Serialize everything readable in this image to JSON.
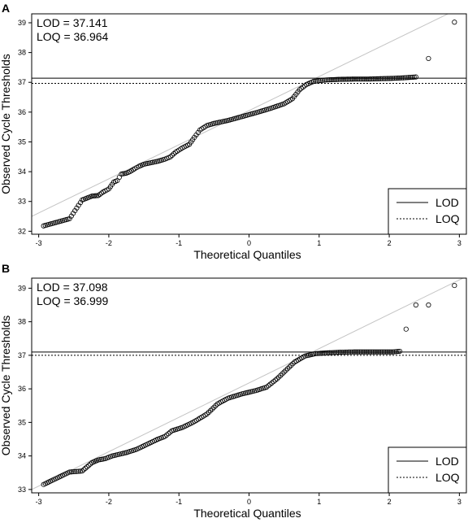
{
  "chart_data": [
    {
      "type": "scatter",
      "panel_label": "A",
      "xlabel": "Theoretical Quantiles",
      "ylabel": "Observed Cycle Thresholds",
      "xlim": [
        -3.1,
        3.1
      ],
      "ylim": [
        31.9,
        39.3
      ],
      "xticks": [
        -3,
        -2,
        -1,
        0,
        1,
        2,
        3
      ],
      "yticks": [
        32,
        33,
        34,
        35,
        36,
        37,
        38,
        39
      ],
      "annotations": [
        "LOD = 37.141",
        "LOQ = 36.964"
      ],
      "hlines": [
        {
          "name": "LOD",
          "y": 37.141,
          "style": "solid"
        },
        {
          "name": "LOQ",
          "y": 36.964,
          "style": "dotted"
        }
      ],
      "reference_line": {
        "x": [
          -3.1,
          3.1
        ],
        "y": [
          32.5,
          39.6
        ]
      },
      "legend": {
        "position": "bottom-right",
        "entries": [
          {
            "label": "LOD",
            "style": "solid"
          },
          {
            "label": "LOQ",
            "style": "dotted"
          }
        ]
      },
      "series": [
        {
          "curve": [
            [
              -2.93,
              32.18
            ],
            [
              -2.56,
              32.42
            ],
            [
              -2.38,
              33.05
            ],
            [
              -2.24,
              33.18
            ],
            [
              -2.15,
              33.2
            ],
            [
              -2.08,
              33.32
            ],
            [
              -2.0,
              33.42
            ],
            [
              -1.93,
              33.65
            ],
            [
              -1.88,
              33.7
            ],
            [
              -1.82,
              33.92
            ],
            [
              -1.75,
              33.95
            ],
            [
              -1.7,
              34.0
            ],
            [
              -1.63,
              34.1
            ],
            [
              -1.57,
              34.18
            ],
            [
              -1.5,
              34.25
            ],
            [
              -1.4,
              34.3
            ],
            [
              -1.3,
              34.35
            ],
            [
              -1.2,
              34.42
            ],
            [
              -1.12,
              34.5
            ],
            [
              -1.05,
              34.65
            ],
            [
              -0.95,
              34.8
            ],
            [
              -0.85,
              34.92
            ],
            [
              -0.78,
              35.15
            ],
            [
              -0.7,
              35.4
            ],
            [
              -0.6,
              35.55
            ],
            [
              -0.5,
              35.62
            ],
            [
              -0.3,
              35.72
            ],
            [
              -0.1,
              35.85
            ],
            [
              0.1,
              35.98
            ],
            [
              0.3,
              36.12
            ],
            [
              0.5,
              36.28
            ],
            [
              0.62,
              36.45
            ],
            [
              0.72,
              36.75
            ],
            [
              0.82,
              36.93
            ],
            [
              0.92,
              37.03
            ],
            [
              1.1,
              37.08
            ],
            [
              1.3,
              37.1
            ],
            [
              1.5,
              37.11
            ],
            [
              1.7,
              37.11
            ],
            [
              1.85,
              37.12
            ],
            [
              2.0,
              37.13
            ],
            [
              2.1,
              37.14
            ],
            [
              2.2,
              37.15
            ],
            [
              2.38,
              37.18
            ]
          ]
        },
        {
          "points": [
            [
              2.56,
              37.8
            ],
            [
              2.93,
              39.02
            ]
          ]
        }
      ]
    },
    {
      "type": "scatter",
      "panel_label": "B",
      "xlabel": "Theoretical Quantiles",
      "ylabel": "Observed Cycle Thresholds",
      "xlim": [
        -3.1,
        3.1
      ],
      "ylim": [
        32.9,
        39.3
      ],
      "xticks": [
        -3,
        -2,
        -1,
        0,
        1,
        2,
        3
      ],
      "yticks": [
        33,
        34,
        35,
        36,
        37,
        38,
        39
      ],
      "annotations": [
        "LOD = 37.098",
        "LOQ = 36.999"
      ],
      "hlines": [
        {
          "name": "LOD",
          "y": 37.098,
          "style": "solid"
        },
        {
          "name": "LOQ",
          "y": 36.999,
          "style": "dotted"
        }
      ],
      "reference_line": {
        "x": [
          -3.1,
          3.1
        ],
        "y": [
          33.0,
          39.35
        ]
      },
      "legend": {
        "position": "bottom-right",
        "entries": [
          {
            "label": "LOD",
            "style": "solid"
          },
          {
            "label": "LOQ",
            "style": "dotted"
          }
        ]
      },
      "series": [
        {
          "curve": [
            [
              -2.93,
              33.15
            ],
            [
              -2.56,
              33.52
            ],
            [
              -2.38,
              33.55
            ],
            [
              -2.24,
              33.8
            ],
            [
              -2.15,
              33.88
            ],
            [
              -2.05,
              33.92
            ],
            [
              -1.95,
              34.0
            ],
            [
              -1.85,
              34.05
            ],
            [
              -1.75,
              34.1
            ],
            [
              -1.6,
              34.2
            ],
            [
              -1.5,
              34.3
            ],
            [
              -1.4,
              34.4
            ],
            [
              -1.3,
              34.5
            ],
            [
              -1.2,
              34.58
            ],
            [
              -1.1,
              34.75
            ],
            [
              -0.95,
              34.85
            ],
            [
              -0.8,
              35.0
            ],
            [
              -0.6,
              35.25
            ],
            [
              -0.45,
              35.55
            ],
            [
              -0.3,
              35.72
            ],
            [
              -0.1,
              35.85
            ],
            [
              0.1,
              35.95
            ],
            [
              0.25,
              36.05
            ],
            [
              0.4,
              36.3
            ],
            [
              0.55,
              36.6
            ],
            [
              0.65,
              36.8
            ],
            [
              0.8,
              36.98
            ],
            [
              0.95,
              37.05
            ],
            [
              1.1,
              37.07
            ],
            [
              1.3,
              37.09
            ],
            [
              1.5,
              37.1
            ],
            [
              1.7,
              37.1
            ],
            [
              1.9,
              37.1
            ],
            [
              2.05,
              37.1
            ],
            [
              2.15,
              37.12
            ]
          ]
        },
        {
          "points": [
            [
              2.24,
              37.78
            ],
            [
              2.38,
              38.5
            ],
            [
              2.56,
              38.5
            ],
            [
              2.93,
              39.08
            ]
          ]
        }
      ]
    }
  ]
}
